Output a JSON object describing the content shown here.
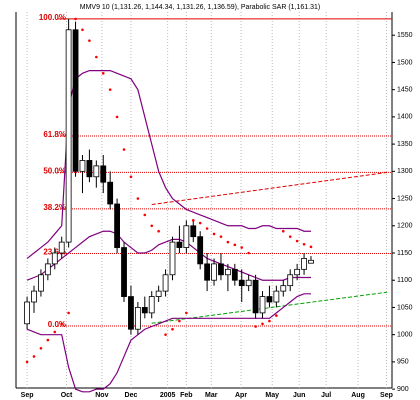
{
  "chart_data": {
    "type": "candlestick",
    "title": "MMV9 10 (1,131.26, 1,144.34, 1,131.26, 1,136.59), Parabolic SAR (1,161.31)",
    "x": [
      0,
      1,
      2,
      3,
      4,
      5,
      6,
      7,
      8,
      9,
      10,
      11,
      12,
      13,
      14,
      15,
      16,
      17,
      18,
      19,
      20,
      21,
      22,
      23,
      24,
      25,
      26,
      27,
      28,
      29,
      30,
      31,
      32,
      33,
      34,
      35,
      36,
      37,
      38,
      39,
      40,
      41
    ],
    "open": [
      1020,
      1060,
      1080,
      1110,
      1130,
      1150,
      1170,
      1560,
      1300,
      1320,
      1290,
      1310,
      1280,
      1240,
      1160,
      1070,
      1010,
      1050,
      1040,
      1070,
      1080,
      1110,
      1170,
      1160,
      1200,
      1180,
      1130,
      1100,
      1130,
      1110,
      1120,
      1100,
      1090,
      1100,
      1040,
      1070,
      1060,
      1080,
      1090,
      1110,
      1120,
      1131.26
    ],
    "high": [
      1070,
      1090,
      1120,
      1140,
      1160,
      1180,
      1580,
      1575,
      1330,
      1340,
      1320,
      1330,
      1300,
      1250,
      1170,
      1090,
      1060,
      1070,
      1080,
      1090,
      1120,
      1180,
      1200,
      1210,
      1210,
      1190,
      1150,
      1140,
      1150,
      1130,
      1130,
      1120,
      1110,
      1110,
      1080,
      1090,
      1090,
      1100,
      1120,
      1130,
      1150,
      1144.34
    ],
    "low": [
      1010,
      1040,
      1070,
      1100,
      1120,
      1140,
      1160,
      1290,
      1260,
      1280,
      1270,
      1260,
      1230,
      1150,
      1060,
      1000,
      1000,
      1030,
      1030,
      1060,
      1070,
      1100,
      1150,
      1150,
      1170,
      1120,
      1080,
      1090,
      1100,
      1080,
      1090,
      1060,
      1080,
      1030,
      1030,
      1050,
      1050,
      1070,
      1080,
      1100,
      1110,
      1131.26
    ],
    "close": [
      1060,
      1080,
      1110,
      1130,
      1150,
      1170,
      1560,
      1300,
      1320,
      1290,
      1310,
      1280,
      1240,
      1160,
      1070,
      1010,
      1050,
      1040,
      1070,
      1080,
      1110,
      1170,
      1160,
      1200,
      1180,
      1130,
      1100,
      1130,
      1110,
      1120,
      1100,
      1090,
      1100,
      1040,
      1070,
      1060,
      1080,
      1090,
      1110,
      1120,
      1140,
      1136.59
    ],
    "bands": [
      {
        "color": "#800080",
        "values": [
          1140,
          1150,
          1160,
          1170,
          1185,
          1200,
          1420,
          1470,
          1480,
          1485,
          1485,
          1485,
          1485,
          1480,
          1475,
          1470,
          1450,
          1400,
          1350,
          1300,
          1270,
          1250,
          1240,
          1230,
          1225,
          1220,
          1215,
          1210,
          1205,
          1200,
          1200,
          1200,
          1195,
          1195,
          1200,
          1200,
          1195,
          1195,
          1195,
          1195,
          1190,
          1190
        ]
      },
      {
        "color": "#800080",
        "values": [
          1100,
          1105,
          1110,
          1120,
          1130,
          1140,
          1150,
          1160,
          1170,
          1180,
          1185,
          1190,
          1190,
          1185,
          1170,
          1160,
          1150,
          1150,
          1155,
          1165,
          1170,
          1175,
          1175,
          1170,
          1160,
          1150,
          1140,
          1135,
          1130,
          1125,
          1120,
          1115,
          1110,
          1105,
          1100,
          1100,
          1100,
          1100,
          1105,
          1105,
          1105,
          1105
        ]
      },
      {
        "color": "#800080",
        "values": [
          1010,
          1005,
          1000,
          1000,
          1000,
          1000,
          940,
          900,
          895,
          895,
          900,
          900,
          910,
          930,
          960,
          990,
          1000,
          1010,
          1015,
          1020,
          1025,
          1030,
          1030,
          1030,
          1030,
          1030,
          1030,
          1030,
          1030,
          1030,
          1030,
          1030,
          1030,
          1030,
          1030,
          1030,
          1040,
          1050,
          1060,
          1070,
          1075,
          1075
        ]
      }
    ],
    "sar": {
      "color": "#ff0000",
      "values": [
        950,
        960,
        975,
        990,
        1005,
        1020,
        1040,
        1580,
        1560,
        1540,
        1510,
        1480,
        1450,
        1400,
        1340,
        1290,
        1250,
        1220,
        1200,
        1190,
        1000,
        1010,
        1025,
        1040,
        1210,
        1205,
        1195,
        1185,
        1180,
        1170,
        1165,
        1160,
        1150,
        1015,
        1020,
        1025,
        1035,
        1190,
        1180,
        1172,
        1166,
        1161.31
      ]
    },
    "fib_levels": [
      {
        "label": "100.0%",
        "value": 1580
      },
      {
        "label": "61.8%",
        "value": 1365
      },
      {
        "label": "50.0%",
        "value": 1298
      },
      {
        "label": "38.2%",
        "value": 1231
      },
      {
        "label": "23.6%",
        "value": 1149
      },
      {
        "label": "0.0%",
        "value": 1016
      }
    ],
    "fib_color": "#e00000",
    "trendlines": [
      {
        "color": "#e00000",
        "x": [
          18,
          52
        ],
        "y": [
          1239,
          1298
        ]
      },
      {
        "color": "#00a000",
        "x": [
          18,
          52
        ],
        "y": [
          1021,
          1078
        ]
      }
    ],
    "xlim": [
      -1.6,
      52.7
    ],
    "xticks": [
      {
        "value": 0,
        "label": "Sep"
      },
      {
        "value": 5.7,
        "label": "Oct"
      },
      {
        "value": 10.8,
        "label": "Nov"
      },
      {
        "value": 15,
        "label": "Dec"
      },
      {
        "value": 20.3,
        "label": "2005"
      },
      {
        "value": 23,
        "label": "Feb"
      },
      {
        "value": 26.6,
        "label": "Mar"
      },
      {
        "value": 30.9,
        "label": "Apr"
      },
      {
        "value": 35.4,
        "label": "May"
      },
      {
        "value": 39.3,
        "label": "Jun"
      },
      {
        "value": 43.2,
        "label": "Jul"
      },
      {
        "value": 47.8,
        "label": "Aug"
      },
      {
        "value": 51.9,
        "label": "Sep"
      }
    ],
    "ylim": [
      880,
      1600
    ],
    "yticks": [
      900,
      950,
      1000,
      1050,
      1100,
      1150,
      1200,
      1250,
      1300,
      1350,
      1400,
      1450,
      1500,
      1550
    ]
  }
}
